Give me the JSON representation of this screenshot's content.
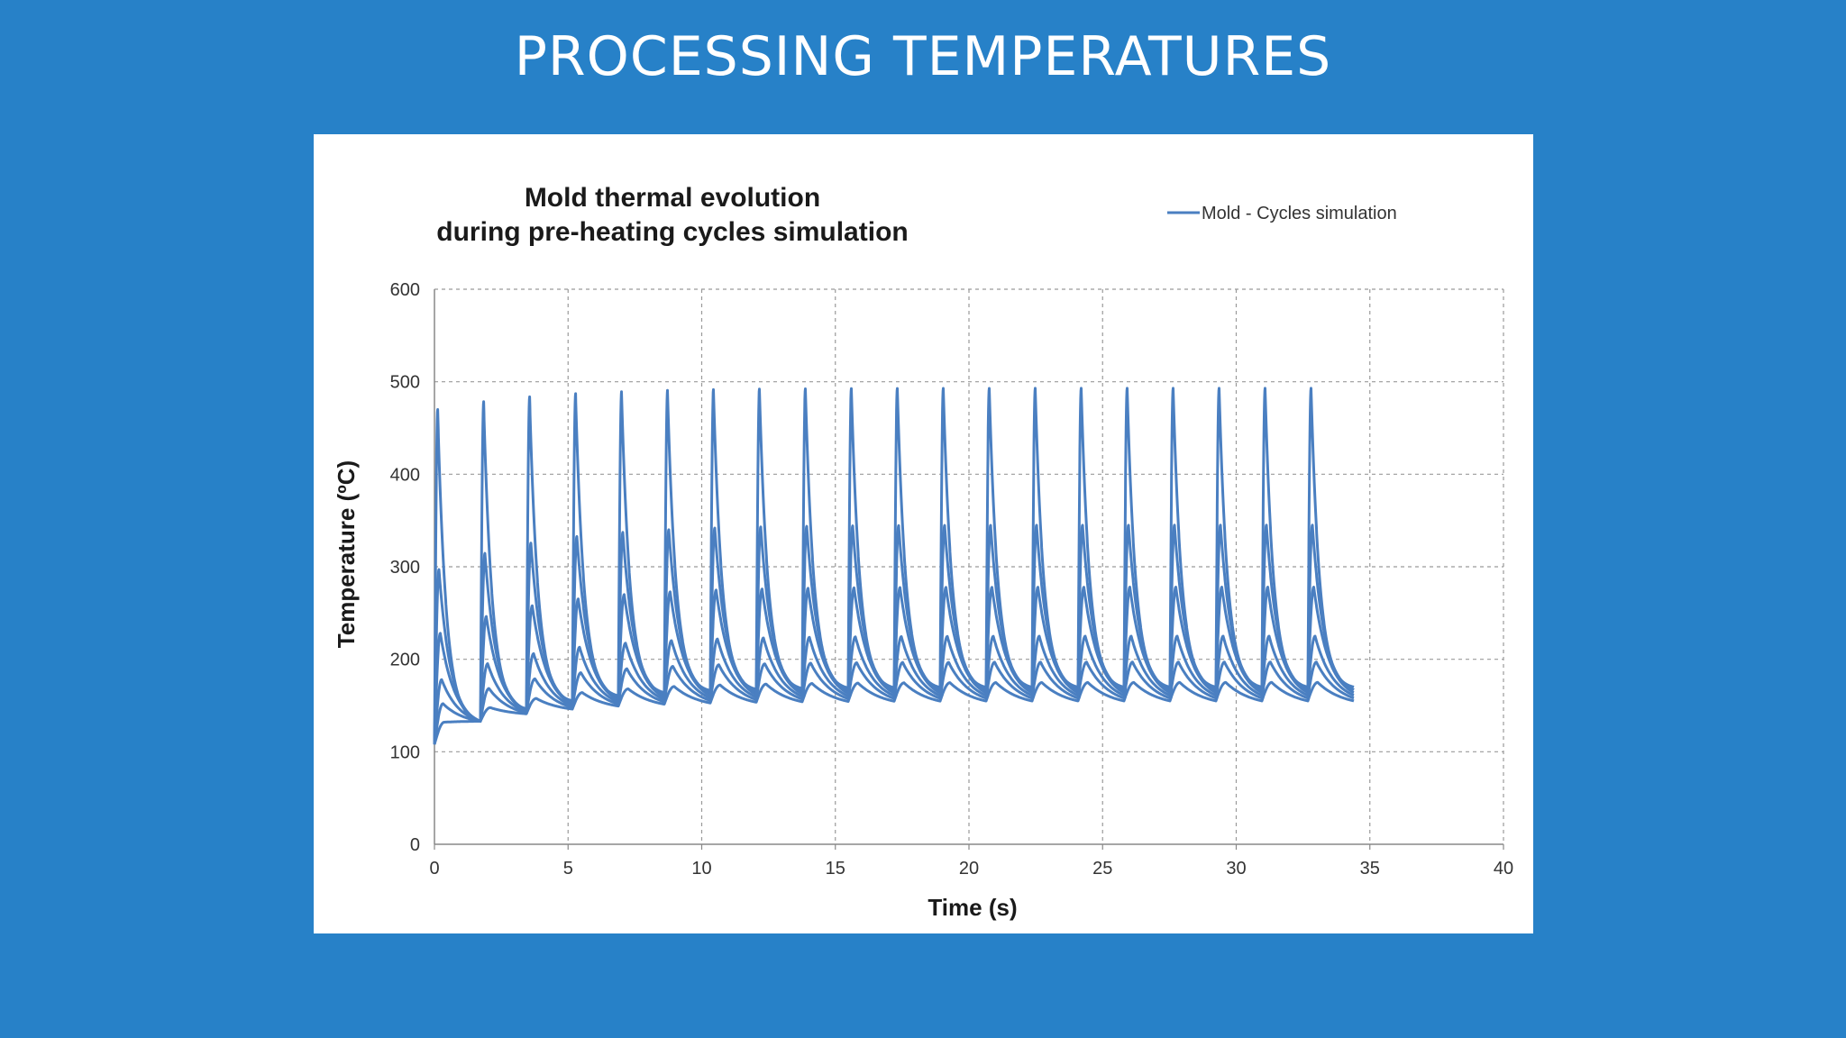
{
  "slide": {
    "title": "PROCESSING TEMPERATURES",
    "background_color": "#2781c8"
  },
  "chart_data": {
    "type": "line",
    "title": [
      "Mold thermal evolution",
      "during pre-heating cycles simulation"
    ],
    "xlabel": "Time (s)",
    "ylabel": "Temperature (ºC)",
    "xlim": [
      0,
      40
    ],
    "ylim": [
      0,
      600
    ],
    "x_ticks": [
      "0",
      "5",
      "10",
      "15",
      "20",
      "25",
      "30",
      "35",
      "40"
    ],
    "y_ticks": [
      "0",
      "100",
      "200",
      "300",
      "400",
      "500",
      "600"
    ],
    "grid": true,
    "legend_position": "top-right",
    "legend": [
      "Mold - Cycles simulation"
    ],
    "series_color": "#4a7fc1",
    "cycle_period_s": 1.72,
    "end_time_s": 34.4,
    "start_temp": 108,
    "peak_first_cycle": [
      470,
      297,
      228,
      178,
      152,
      132
    ],
    "peak_steady": [
      493,
      345,
      278,
      225,
      197,
      175
    ],
    "trough_steady": [
      170,
      167,
      164,
      161,
      158,
      155
    ]
  }
}
